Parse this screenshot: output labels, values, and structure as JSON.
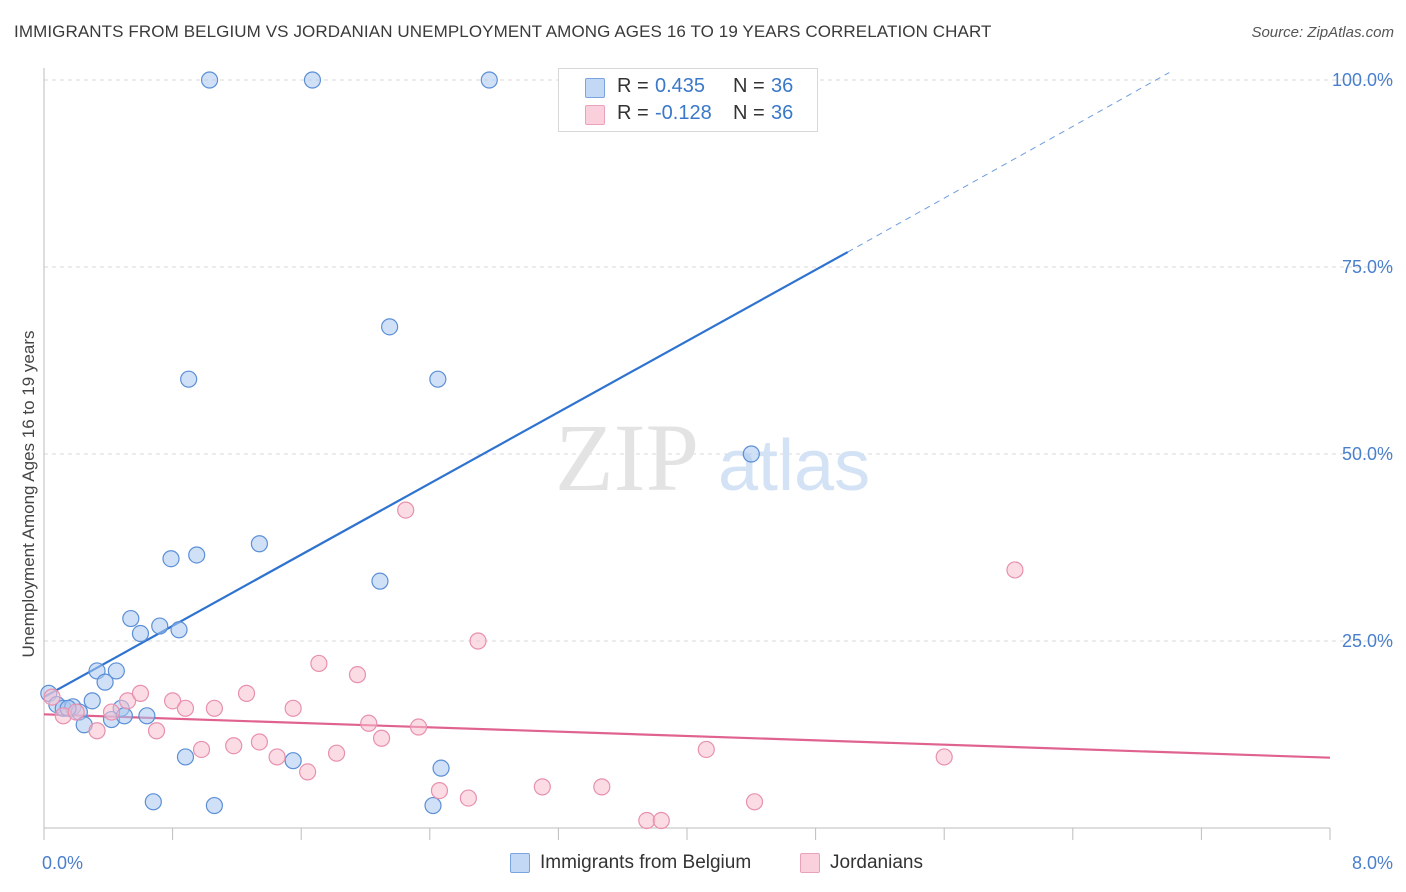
{
  "title": "IMMIGRANTS FROM BELGIUM VS JORDANIAN UNEMPLOYMENT AMONG AGES 16 TO 19 YEARS CORRELATION CHART",
  "source": "Source: ZipAtlas.com",
  "watermark": {
    "zip": "ZIP",
    "atlas": "atlas"
  },
  "colors": {
    "blue_fill": "#a9c8f0",
    "blue_stroke": "#5b8fd6",
    "blue_line": "#2f73d0",
    "pink_fill": "#f7bfd0",
    "pink_stroke": "#e890ad",
    "pink_line": "#e0628f",
    "axis_text": "#4a7fcc",
    "grid": "#d9d9d9"
  },
  "legend_top": [
    {
      "series": "blue",
      "r_label": "R =",
      "r_value": "0.435",
      "n_label": "N =",
      "n_value": "36"
    },
    {
      "series": "pink",
      "r_label": "R =",
      "r_value": "-0.128",
      "n_label": "N =",
      "n_value": "36"
    }
  ],
  "legend_bottom": [
    {
      "series": "blue",
      "label": "Immigrants from Belgium"
    },
    {
      "series": "pink",
      "label": "Jordanians"
    }
  ],
  "chart_data": {
    "type": "scatter",
    "ylabel": "Unemployment Among Ages 16 to 19 years",
    "xlabel": "",
    "xlim": [
      0,
      8
    ],
    "ylim": [
      0,
      100
    ],
    "x_tick_labels": [
      {
        "value": 0,
        "label": "0.0%"
      },
      {
        "value": 8,
        "label": "8.0%"
      }
    ],
    "y_tick_labels": [
      {
        "value": 25,
        "label": "25.0%"
      },
      {
        "value": 50,
        "label": "50.0%"
      },
      {
        "value": 75,
        "label": "75.0%"
      },
      {
        "value": 100,
        "label": "100.0%"
      }
    ],
    "grid": true,
    "series": [
      {
        "name": "Immigrants from Belgium",
        "color": "blue",
        "points": [
          [
            0.03,
            18.0
          ],
          [
            0.08,
            16.5
          ],
          [
            0.12,
            16.0
          ],
          [
            0.18,
            16.2
          ],
          [
            0.22,
            15.5
          ],
          [
            0.25,
            13.8
          ],
          [
            0.3,
            17.0
          ],
          [
            0.33,
            21.0
          ],
          [
            0.38,
            19.5
          ],
          [
            0.42,
            14.5
          ],
          [
            0.45,
            21.0
          ],
          [
            0.48,
            16.0
          ],
          [
            0.5,
            15.0
          ],
          [
            0.54,
            28.0
          ],
          [
            0.6,
            26.0
          ],
          [
            0.64,
            15.0
          ],
          [
            0.68,
            3.5
          ],
          [
            0.72,
            27.0
          ],
          [
            0.79,
            36.0
          ],
          [
            0.84,
            26.5
          ],
          [
            0.88,
            9.5
          ],
          [
            0.9,
            60.0
          ],
          [
            0.95,
            36.5
          ],
          [
            1.03,
            100.0
          ],
          [
            1.06,
            3.0
          ],
          [
            1.34,
            38.0
          ],
          [
            1.55,
            9.0
          ],
          [
            1.67,
            100.0
          ],
          [
            2.09,
            33.0
          ],
          [
            2.15,
            67.0
          ],
          [
            2.42,
            3.0
          ],
          [
            2.45,
            60.0
          ],
          [
            2.47,
            8.0
          ],
          [
            2.77,
            100.0
          ],
          [
            4.4,
            50.0
          ],
          [
            0.15,
            16.0
          ]
        ],
        "trend": {
          "x0": 0,
          "y0": 17.5,
          "x1": 5.0,
          "y1": 77.0,
          "dashed_to_x": 7.0,
          "dashed_to_y": 101.0
        }
      },
      {
        "name": "Jordanians",
        "color": "pink",
        "points": [
          [
            0.05,
            17.5
          ],
          [
            0.12,
            15.0
          ],
          [
            0.2,
            15.5
          ],
          [
            0.33,
            13.0
          ],
          [
            0.42,
            15.5
          ],
          [
            0.52,
            17.0
          ],
          [
            0.6,
            18.0
          ],
          [
            0.7,
            13.0
          ],
          [
            0.8,
            17.0
          ],
          [
            0.88,
            16.0
          ],
          [
            0.98,
            10.5
          ],
          [
            1.06,
            16.0
          ],
          [
            1.18,
            11.0
          ],
          [
            1.26,
            18.0
          ],
          [
            1.34,
            11.5
          ],
          [
            1.45,
            9.5
          ],
          [
            1.55,
            16.0
          ],
          [
            1.64,
            7.5
          ],
          [
            1.71,
            22.0
          ],
          [
            1.82,
            10.0
          ],
          [
            1.95,
            20.5
          ],
          [
            2.02,
            14.0
          ],
          [
            2.1,
            12.0
          ],
          [
            2.25,
            42.5
          ],
          [
            2.33,
            13.5
          ],
          [
            2.46,
            5.0
          ],
          [
            2.64,
            4.0
          ],
          [
            2.7,
            25.0
          ],
          [
            3.1,
            5.5
          ],
          [
            3.47,
            5.5
          ],
          [
            3.75,
            1.0
          ],
          [
            3.84,
            1.0
          ],
          [
            4.12,
            10.5
          ],
          [
            4.42,
            3.5
          ],
          [
            5.6,
            9.5
          ],
          [
            6.04,
            34.5
          ]
        ],
        "trend": {
          "x0": 0,
          "y0": 15.2,
          "x1": 8.0,
          "y1": 9.4
        }
      }
    ]
  }
}
